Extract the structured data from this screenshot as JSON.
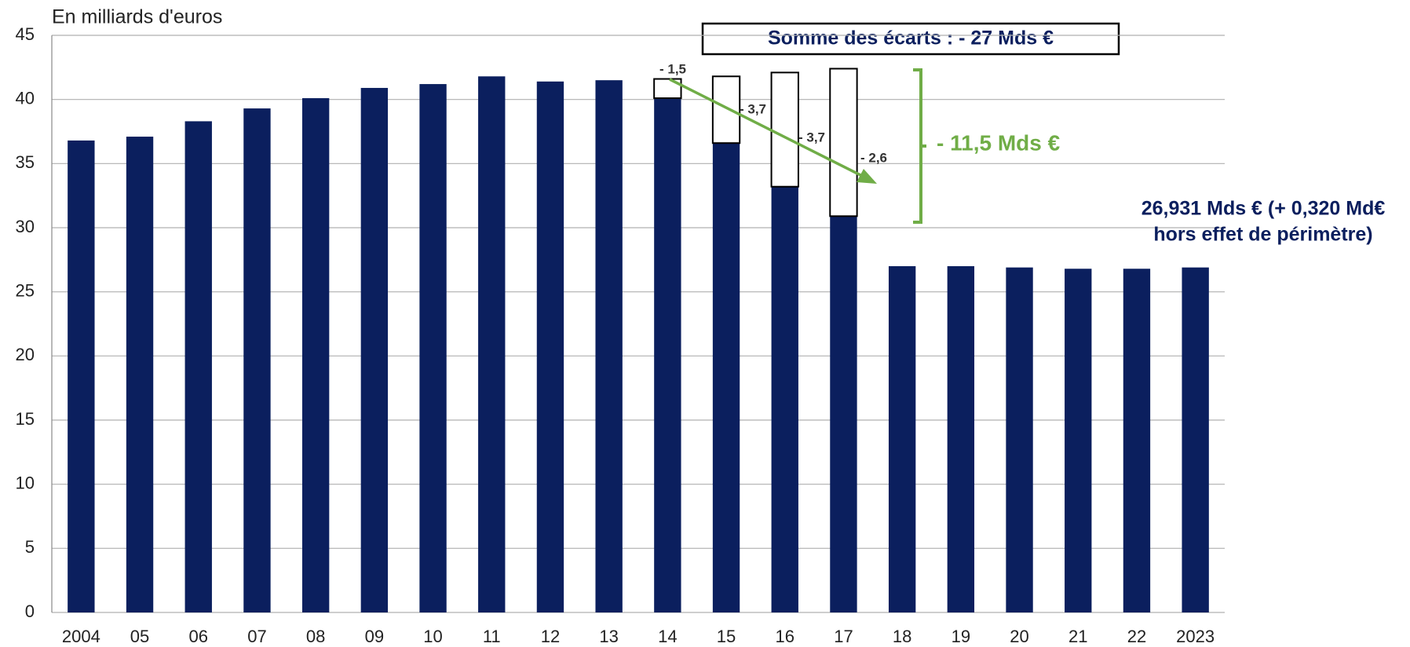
{
  "chart_data": {
    "type": "stacked-bar",
    "axis_label": "En milliards d'euros",
    "categories": [
      "2004",
      "05",
      "06",
      "07",
      "08",
      "09",
      "10",
      "11",
      "12",
      "13",
      "14",
      "15",
      "16",
      "17",
      "18",
      "19",
      "20",
      "21",
      "22",
      "2023"
    ],
    "series": [
      {
        "color": "#0b1f5e",
        "values": [
          36.8,
          37.1,
          38.3,
          39.3,
          40.1,
          40.9,
          41.2,
          41.8,
          41.4,
          41.5,
          40.1,
          36.6,
          33.2,
          30.9,
          27.0,
          27.0,
          26.9,
          26.8,
          26.8,
          26.9
        ]
      },
      {
        "color": "#ffffff",
        "values": [
          null,
          null,
          null,
          null,
          null,
          null,
          null,
          null,
          null,
          null,
          1.5,
          5.2,
          8.9,
          11.5,
          null,
          null,
          null,
          null,
          null,
          null
        ]
      }
    ],
    "ylim": [
      0,
      45
    ],
    "yticks": [
      0,
      5,
      10,
      15,
      20,
      25,
      30,
      35,
      40,
      45
    ],
    "grid": true,
    "gap_labels": [
      "- 1,5",
      "- 3,7",
      "- 3,7",
      "- 2,6"
    ],
    "sum_box": "Somme des écarts :  - 27 Mds €",
    "bracket_label": "- 11,5 Mds €",
    "final_note": [
      "26,931 Mds € (+ 0,320 Md€",
      "hors effet de périmètre)"
    ]
  }
}
